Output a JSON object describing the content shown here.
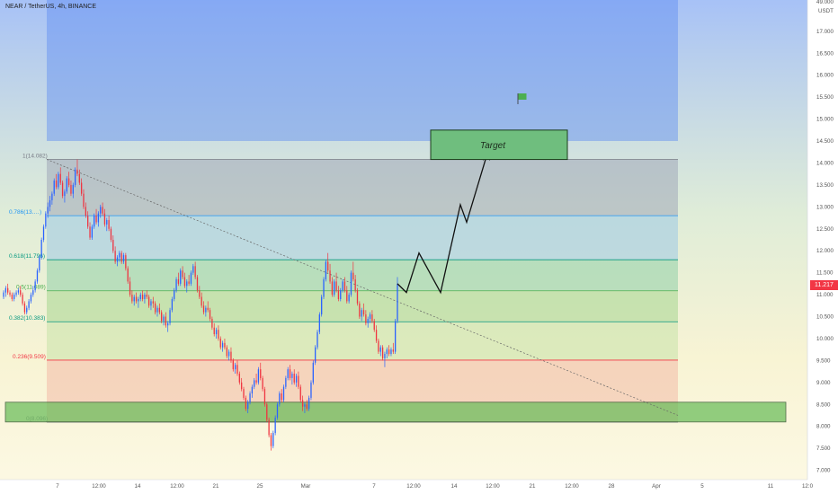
{
  "header": {
    "title": "NEAR / TetherUS, 4h, BINANCE"
  },
  "price_axis": {
    "currency": "USDT",
    "current_price": "11.217"
  },
  "chart_data": {
    "type": "candlestick",
    "symbol": "NEAR / TetherUS",
    "interval": "4h",
    "exchange": "BINANCE",
    "y_ticks": [
      "7.000",
      "7.500",
      "8.000",
      "8.500",
      "9.000",
      "9.500",
      "10.000",
      "10.500",
      "11.000",
      "11.500",
      "12.000",
      "12.500",
      "13.000",
      "13.500",
      "14.000",
      "14.500",
      "15.000",
      "15.500",
      "16.000",
      "16.500",
      "17.000"
    ],
    "y_top_partial": "49.000",
    "ylim": [
      6.85,
      17.7
    ],
    "x_ticks": [
      "7",
      "12:00",
      "14",
      "12:00",
      "21",
      "25",
      "Mar",
      "7",
      "12:00",
      "14",
      "12:00",
      "21",
      "12:00",
      "28",
      "Apr",
      "5",
      "11",
      "12:0"
    ],
    "fibonacci": [
      {
        "label": "1(14.082)",
        "value": 14.082,
        "color": "#787b86"
      },
      {
        "label": "0.786(13.…)",
        "value": 12.8,
        "color": "#2196f3"
      },
      {
        "label": "0.618(11.796)",
        "value": 11.796,
        "color": "#089981"
      },
      {
        "label": "0.5(11.089)",
        "value": 11.089,
        "color": "#4caf50"
      },
      {
        "label": "0.382(10.383)",
        "value": 10.383,
        "color": "#089981"
      },
      {
        "label": "0.236(9.509)",
        "value": 9.509,
        "color": "#f23645"
      },
      {
        "label": "0(8.096)",
        "value": 8.096,
        "color": "#787b86"
      }
    ],
    "target_label": "Target",
    "target_zone": [
      14.08,
      14.75
    ],
    "support_zone": [
      8.1,
      8.55
    ],
    "projection_path": [
      {
        "date": "Mar 9 04:00",
        "price": 11.25
      },
      {
        "date": "Mar 10",
        "price": 11.05
      },
      {
        "date": "Mar 11",
        "price": 11.95
      },
      {
        "date": "Mar 13",
        "price": 11.05
      },
      {
        "date": "Mar 15",
        "price": 13.05
      },
      {
        "date": "Mar 16",
        "price": 12.65
      },
      {
        "date": "Mar 19",
        "price": 14.15
      }
    ],
    "trendline": [
      {
        "date": "Feb 6",
        "price": 14.082
      },
      {
        "date": "Apr 3",
        "price": 8.25
      }
    ],
    "candles": [
      [
        10.95,
        11.1,
        10.9,
        11.05
      ],
      [
        11.05,
        11.2,
        10.95,
        11.15
      ],
      [
        11.15,
        11.25,
        11.0,
        11.05
      ],
      [
        11.05,
        11.1,
        10.95,
        11.0
      ],
      [
        11.0,
        11.05,
        10.85,
        10.9
      ],
      [
        10.9,
        11.05,
        10.85,
        11.0
      ],
      [
        11.0,
        11.1,
        10.95,
        11.05
      ],
      [
        11.05,
        11.15,
        11.0,
        11.1
      ],
      [
        11.1,
        11.2,
        10.95,
        11.0
      ],
      [
        11.0,
        11.05,
        10.75,
        10.8
      ],
      [
        10.8,
        10.85,
        10.55,
        10.6
      ],
      [
        10.6,
        10.75,
        10.55,
        10.7
      ],
      [
        10.7,
        10.9,
        10.65,
        10.85
      ],
      [
        10.85,
        11.05,
        10.8,
        11.0
      ],
      [
        11.0,
        11.2,
        10.95,
        11.1
      ],
      [
        11.1,
        11.35,
        11.05,
        11.3
      ],
      [
        11.3,
        11.6,
        11.25,
        11.55
      ],
      [
        11.55,
        11.9,
        11.5,
        11.85
      ],
      [
        11.85,
        12.3,
        11.8,
        12.25
      ],
      [
        12.25,
        12.6,
        12.2,
        12.55
      ],
      [
        12.55,
        12.9,
        12.5,
        12.85
      ],
      [
        12.85,
        13.1,
        12.75,
        13.0
      ],
      [
        13.0,
        13.25,
        12.9,
        13.15
      ],
      [
        13.15,
        13.35,
        13.05,
        13.3
      ],
      [
        13.3,
        13.65,
        13.25,
        13.6
      ],
      [
        13.6,
        13.75,
        13.4,
        13.45
      ],
      [
        13.45,
        13.8,
        13.4,
        13.75
      ],
      [
        13.75,
        13.9,
        13.5,
        13.55
      ],
      [
        13.55,
        13.6,
        13.2,
        13.25
      ],
      [
        13.25,
        13.4,
        13.1,
        13.35
      ],
      [
        13.35,
        13.7,
        13.3,
        13.65
      ],
      [
        13.65,
        13.8,
        13.45,
        13.5
      ],
      [
        13.5,
        13.6,
        13.25,
        13.3
      ],
      [
        13.3,
        13.55,
        13.2,
        13.5
      ],
      [
        13.5,
        13.9,
        13.45,
        13.85
      ],
      [
        13.85,
        14.082,
        13.7,
        13.75
      ],
      [
        13.75,
        13.85,
        13.5,
        13.55
      ],
      [
        13.55,
        13.65,
        13.25,
        13.3
      ],
      [
        13.3,
        13.4,
        12.95,
        13.0
      ],
      [
        13.0,
        13.1,
        12.75,
        12.8
      ],
      [
        12.8,
        12.9,
        12.5,
        12.55
      ],
      [
        12.55,
        12.65,
        12.25,
        12.3
      ],
      [
        12.3,
        12.6,
        12.25,
        12.55
      ],
      [
        12.55,
        12.85,
        12.5,
        12.8
      ],
      [
        12.8,
        12.95,
        12.6,
        12.65
      ],
      [
        12.65,
        12.9,
        12.55,
        12.85
      ],
      [
        12.85,
        13.05,
        12.75,
        13.0
      ],
      [
        13.0,
        13.1,
        12.8,
        12.85
      ],
      [
        12.85,
        12.95,
        12.55,
        12.6
      ],
      [
        12.6,
        12.75,
        12.45,
        12.7
      ],
      [
        12.7,
        12.8,
        12.45,
        12.5
      ],
      [
        12.5,
        12.55,
        12.2,
        12.25
      ],
      [
        12.25,
        12.35,
        11.95,
        12.0
      ],
      [
        12.0,
        12.1,
        11.7,
        11.75
      ],
      [
        11.75,
        11.9,
        11.65,
        11.85
      ],
      [
        11.85,
        12.0,
        11.75,
        11.95
      ],
      [
        11.95,
        12.0,
        11.7,
        11.75
      ],
      [
        11.75,
        11.95,
        11.7,
        11.9
      ],
      [
        11.9,
        11.95,
        11.55,
        11.6
      ],
      [
        11.6,
        11.65,
        11.25,
        11.3
      ],
      [
        11.3,
        11.4,
        10.95,
        11.0
      ],
      [
        11.0,
        11.1,
        10.8,
        10.85
      ],
      [
        10.85,
        11.0,
        10.75,
        10.95
      ],
      [
        10.95,
        11.05,
        10.8,
        10.85
      ],
      [
        10.85,
        10.95,
        10.7,
        10.9
      ],
      [
        10.9,
        11.05,
        10.85,
        11.0
      ],
      [
        11.0,
        11.1,
        10.85,
        10.9
      ],
      [
        10.9,
        11.05,
        10.8,
        11.0
      ],
      [
        11.0,
        11.1,
        10.9,
        10.95
      ],
      [
        10.95,
        11.0,
        10.7,
        10.75
      ],
      [
        10.75,
        10.9,
        10.65,
        10.85
      ],
      [
        10.85,
        10.95,
        10.7,
        10.8
      ],
      [
        10.8,
        10.85,
        10.55,
        10.6
      ],
      [
        10.6,
        10.75,
        10.5,
        10.7
      ],
      [
        10.7,
        10.8,
        10.55,
        10.6
      ],
      [
        10.6,
        10.65,
        10.35,
        10.4
      ],
      [
        10.4,
        10.55,
        10.3,
        10.5
      ],
      [
        10.5,
        10.6,
        10.25,
        10.3
      ],
      [
        10.3,
        10.4,
        10.15,
        10.35
      ],
      [
        10.35,
        10.7,
        10.3,
        10.65
      ],
      [
        10.65,
        10.95,
        10.6,
        10.9
      ],
      [
        10.9,
        11.15,
        10.85,
        11.1
      ],
      [
        11.1,
        11.4,
        11.05,
        11.35
      ],
      [
        11.35,
        11.5,
        11.2,
        11.25
      ],
      [
        11.25,
        11.6,
        11.2,
        11.55
      ],
      [
        11.55,
        11.65,
        11.35,
        11.4
      ],
      [
        11.4,
        11.5,
        11.15,
        11.2
      ],
      [
        11.2,
        11.35,
        11.05,
        11.3
      ],
      [
        11.3,
        11.45,
        11.2,
        11.25
      ],
      [
        11.25,
        11.55,
        11.2,
        11.5
      ],
      [
        11.5,
        11.7,
        11.45,
        11.65
      ],
      [
        11.65,
        11.75,
        11.35,
        11.4
      ],
      [
        11.4,
        11.45,
        11.05,
        11.1
      ],
      [
        11.1,
        11.2,
        10.9,
        10.95
      ],
      [
        10.95,
        11.05,
        10.7,
        10.75
      ],
      [
        10.75,
        10.85,
        10.55,
        10.6
      ],
      [
        10.6,
        10.75,
        10.5,
        10.7
      ],
      [
        10.7,
        10.85,
        10.6,
        10.65
      ],
      [
        10.65,
        10.7,
        10.4,
        10.45
      ],
      [
        10.45,
        10.5,
        10.2,
        10.25
      ],
      [
        10.25,
        10.35,
        10.05,
        10.1
      ],
      [
        10.1,
        10.25,
        10.0,
        10.2
      ],
      [
        10.2,
        10.3,
        9.95,
        10.0
      ],
      [
        10.0,
        10.05,
        9.75,
        9.8
      ],
      [
        9.8,
        9.95,
        9.7,
        9.9
      ],
      [
        9.9,
        10.0,
        9.75,
        9.8
      ],
      [
        9.8,
        9.85,
        9.55,
        9.6
      ],
      [
        9.6,
        9.75,
        9.5,
        9.7
      ],
      [
        9.7,
        9.8,
        9.45,
        9.5
      ],
      [
        9.5,
        9.55,
        9.25,
        9.3
      ],
      [
        9.3,
        9.45,
        9.2,
        9.4
      ],
      [
        9.4,
        9.5,
        9.15,
        9.2
      ],
      [
        9.2,
        9.25,
        8.95,
        9.0
      ],
      [
        9.0,
        9.1,
        8.8,
        8.85
      ],
      [
        8.85,
        8.9,
        8.6,
        8.65
      ],
      [
        8.65,
        8.7,
        8.35,
        8.4
      ],
      [
        8.4,
        8.6,
        8.3,
        8.55
      ],
      [
        8.55,
        8.8,
        8.5,
        8.75
      ],
      [
        8.75,
        8.95,
        8.65,
        8.9
      ],
      [
        8.9,
        9.1,
        8.85,
        9.05
      ],
      [
        9.05,
        9.2,
        8.95,
        9.0
      ],
      [
        9.0,
        9.35,
        8.95,
        9.3
      ],
      [
        9.3,
        9.45,
        9.05,
        9.1
      ],
      [
        9.1,
        9.15,
        8.8,
        8.85
      ],
      [
        8.85,
        8.9,
        8.45,
        8.5
      ],
      [
        8.5,
        8.55,
        8.1,
        8.15
      ],
      [
        8.15,
        8.2,
        7.75,
        7.8
      ],
      [
        7.8,
        7.85,
        7.45,
        7.55
      ],
      [
        7.55,
        7.9,
        7.5,
        7.85
      ],
      [
        7.85,
        8.25,
        7.8,
        8.2
      ],
      [
        8.2,
        8.55,
        8.15,
        8.5
      ],
      [
        8.5,
        8.8,
        8.45,
        8.75
      ],
      [
        8.75,
        8.85,
        8.55,
        8.6
      ],
      [
        8.6,
        8.95,
        8.55,
        8.9
      ],
      [
        8.9,
        9.15,
        8.85,
        9.1
      ],
      [
        9.1,
        9.35,
        9.05,
        9.3
      ],
      [
        9.3,
        9.4,
        9.05,
        9.1
      ],
      [
        9.1,
        9.25,
        8.95,
        9.2
      ],
      [
        9.2,
        9.3,
        8.95,
        9.0
      ],
      [
        9.0,
        9.2,
        8.9,
        9.15
      ],
      [
        9.15,
        9.25,
        8.85,
        8.9
      ],
      [
        8.9,
        8.95,
        8.55,
        8.6
      ],
      [
        8.6,
        8.7,
        8.35,
        8.45
      ],
      [
        8.45,
        8.55,
        8.3,
        8.5
      ],
      [
        8.5,
        8.6,
        8.35,
        8.4
      ],
      [
        8.4,
        8.7,
        8.35,
        8.65
      ],
      [
        8.65,
        9.05,
        8.6,
        9.0
      ],
      [
        9.0,
        9.5,
        8.95,
        9.45
      ],
      [
        9.45,
        9.85,
        9.4,
        9.8
      ],
      [
        9.8,
        10.2,
        9.75,
        10.15
      ],
      [
        10.15,
        10.6,
        10.1,
        10.55
      ],
      [
        10.55,
        11.0,
        10.5,
        10.95
      ],
      [
        10.95,
        11.4,
        10.9,
        11.35
      ],
      [
        11.35,
        11.8,
        11.3,
        11.75
      ],
      [
        11.75,
        11.95,
        11.5,
        11.55
      ],
      [
        11.55,
        11.7,
        11.25,
        11.3
      ],
      [
        11.3,
        11.4,
        10.95,
        11.0
      ],
      [
        11.0,
        11.35,
        10.95,
        11.3
      ],
      [
        11.3,
        11.5,
        11.05,
        11.1
      ],
      [
        11.1,
        11.2,
        10.85,
        10.9
      ],
      [
        10.9,
        11.15,
        10.85,
        11.1
      ],
      [
        11.1,
        11.35,
        11.05,
        11.3
      ],
      [
        11.3,
        11.4,
        11.05,
        11.1
      ],
      [
        11.1,
        11.2,
        10.8,
        10.85
      ],
      [
        10.85,
        11.05,
        10.8,
        11.0
      ],
      [
        11.0,
        11.55,
        10.95,
        11.5
      ],
      [
        11.5,
        11.75,
        11.3,
        11.35
      ],
      [
        11.35,
        11.45,
        11.05,
        11.1
      ],
      [
        11.1,
        11.15,
        10.75,
        10.8
      ],
      [
        10.8,
        10.85,
        10.45,
        10.5
      ],
      [
        10.5,
        10.7,
        10.4,
        10.65
      ],
      [
        10.65,
        10.8,
        10.5,
        10.55
      ],
      [
        10.55,
        10.65,
        10.3,
        10.35
      ],
      [
        10.35,
        10.5,
        10.25,
        10.45
      ],
      [
        10.45,
        10.6,
        10.35,
        10.55
      ],
      [
        10.55,
        10.65,
        10.35,
        10.4
      ],
      [
        10.4,
        10.45,
        10.15,
        10.2
      ],
      [
        10.2,
        10.3,
        9.9,
        9.95
      ],
      [
        9.95,
        10.0,
        9.65,
        9.7
      ],
      [
        9.7,
        9.85,
        9.6,
        9.8
      ],
      [
        9.8,
        9.85,
        9.5,
        9.55
      ],
      [
        9.55,
        9.7,
        9.35,
        9.65
      ],
      [
        9.65,
        9.8,
        9.55,
        9.75
      ],
      [
        9.75,
        9.85,
        9.6,
        9.65
      ],
      [
        9.65,
        9.8,
        9.6,
        9.75
      ],
      [
        9.75,
        9.9,
        9.65,
        9.7
      ],
      [
        9.7,
        10.45,
        9.65,
        10.4
      ],
      [
        10.4,
        11.4,
        10.35,
        11.25
      ]
    ]
  }
}
